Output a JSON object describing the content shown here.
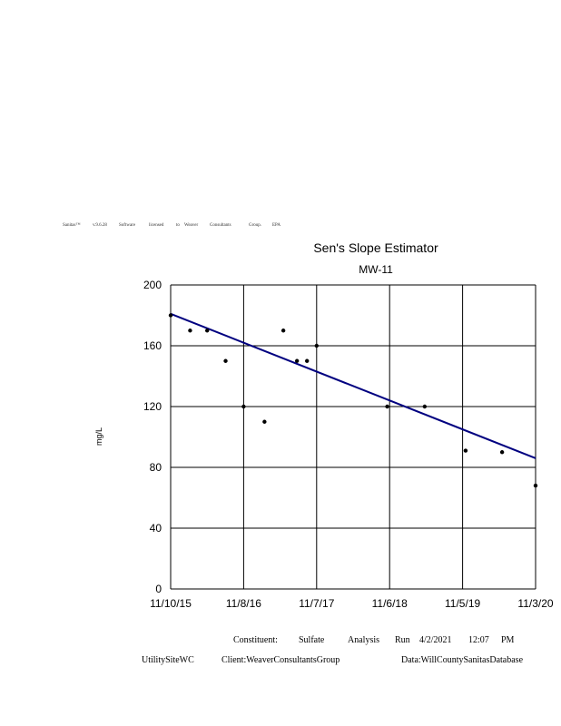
{
  "software_line": [
    "Sanitas™",
    "v.9.6.28",
    "Software",
    "licensed",
    "to",
    "Weaver",
    "Consultants",
    "Group.",
    "EPA"
  ],
  "chart_data": {
    "type": "scatter",
    "title": "Sen's Slope Estimator",
    "subtitle": "MW-11",
    "xlabel": "",
    "ylabel": "mg/L",
    "x_ticks": [
      "11/10/15",
      "11/8/16",
      "11/7/17",
      "11/6/18",
      "11/5/19",
      "11/3/20"
    ],
    "x_range": [
      "2015-11-10",
      "2020-11-03"
    ],
    "y_ticks": [
      0,
      40,
      80,
      120,
      160,
      200
    ],
    "ylim": [
      0,
      200
    ],
    "grid": true,
    "marker_color": "#000000",
    "trend_color": "#000080",
    "series": [
      {
        "points": [
          {
            "x": "2015-11-10",
            "y": 180
          },
          {
            "x": "2016-02-15",
            "y": 170
          },
          {
            "x": "2016-05-10",
            "y": 170
          },
          {
            "x": "2016-08-10",
            "y": 150
          },
          {
            "x": "2016-11-08",
            "y": 120
          },
          {
            "x": "2017-02-20",
            "y": 110
          },
          {
            "x": "2017-05-25",
            "y": 170
          },
          {
            "x": "2017-08-01",
            "y": 150
          },
          {
            "x": "2017-09-20",
            "y": 150
          },
          {
            "x": "2017-11-07",
            "y": 160
          },
          {
            "x": "2018-10-25",
            "y": 120
          },
          {
            "x": "2019-04-30",
            "y": 120
          },
          {
            "x": "2019-11-20",
            "y": 91
          },
          {
            "x": "2020-05-20",
            "y": 90
          },
          {
            "x": "2020-11-03",
            "y": 68
          }
        ]
      }
    ],
    "trend_line": {
      "start": {
        "x": "2015-11-10",
        "y": 181
      },
      "end": {
        "x": "2020-11-03",
        "y": 86
      }
    }
  },
  "footer": {
    "constituent_label": "Constituent:",
    "constituent_value": "Sulfate",
    "analysis_label": "Analysis",
    "run_label": "Run",
    "run_date": "4/2/2021",
    "run_time": "12:07",
    "run_ampm": "PM",
    "site": "UtilitySiteWC",
    "client": "Client:WeaverConsultantsGroup",
    "data": "Data:WillCountySanitasDatabase"
  }
}
